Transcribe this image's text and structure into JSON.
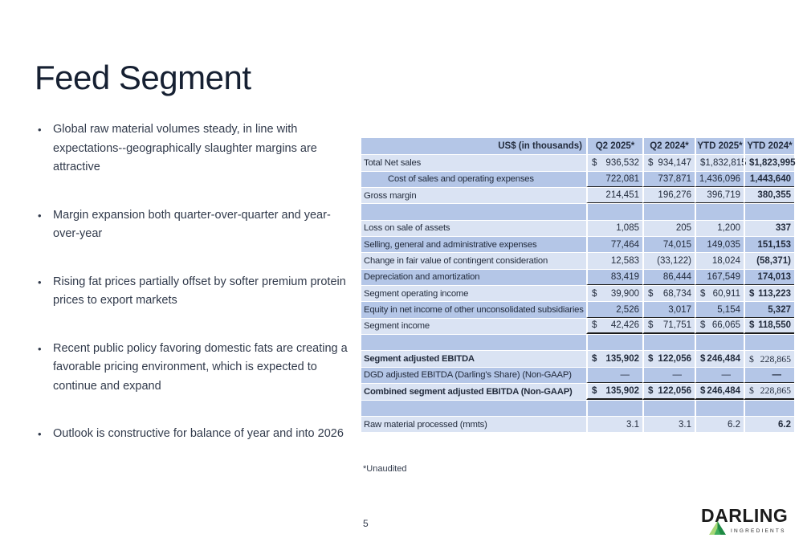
{
  "slide": {
    "title": "Feed Segment",
    "footnote": "*Unaudited",
    "page_number": "5"
  },
  "bullets": [
    "Global raw material volumes steady, in line with expectations--geographically slaughter margins are attractive",
    "Margin expansion both quarter-over-quarter and year-over-year",
    "Rising fat prices partially offset by softer premium protein prices to export markets",
    "Recent public policy favoring domestic fats are creating a favorable pricing environment, which is expected to continue and expand",
    "Outlook is constructive for balance of year and into 2026"
  ],
  "table": {
    "unit_label": "US$ (in thousands)",
    "columns": [
      "Q2 2025*",
      "Q2 2024*",
      "YTD 2025*",
      "YTD 2024*"
    ],
    "colors": {
      "header_bg": "#b4c6e7",
      "band_light": "#dae3f3",
      "band_medium": "#b4c6e7",
      "text": "#232c3d",
      "rule": "#1a1a1a"
    },
    "rows": [
      {
        "label": "Total Net sales",
        "band": "light",
        "dollar": true,
        "values": [
          "936,532",
          "934,147",
          "1,832,815",
          "1,823,995"
        ]
      },
      {
        "label": "Cost of sales and operating expenses",
        "band": "medium",
        "indent": true,
        "underline": "thin",
        "values": [
          "722,081",
          "737,871",
          "1,436,096",
          "1,443,640"
        ]
      },
      {
        "label": "Gross margin",
        "band": "light",
        "underline": "thin",
        "values": [
          "214,451",
          "196,276",
          "396,719",
          "380,355"
        ]
      },
      {
        "label": "",
        "band": "medium",
        "values": [
          "",
          "",
          "",
          ""
        ]
      },
      {
        "label": "Loss on sale of assets",
        "band": "light",
        "values": [
          "1,085",
          "205",
          "1,200",
          "337"
        ]
      },
      {
        "label": "Selling, general and administrative expenses",
        "band": "medium",
        "values": [
          "77,464",
          "74,015",
          "149,035",
          "151,153"
        ]
      },
      {
        "label": "Change in fair value of contingent consideration",
        "band": "light",
        "values": [
          "12,583",
          "(33,122)",
          "18,024",
          "(58,371)"
        ]
      },
      {
        "label": "Depreciation and amortization",
        "band": "medium",
        "underline": "thin",
        "values": [
          "83,419",
          "86,444",
          "167,549",
          "174,013"
        ]
      },
      {
        "label": "Segment operating income",
        "band": "light",
        "dollar": true,
        "values": [
          "39,900",
          "68,734",
          "60,911",
          "113,223"
        ]
      },
      {
        "label": "Equity in net income of other unconsolidated subsidiaries",
        "band": "medium",
        "underline": "thin",
        "values": [
          "2,526",
          "3,017",
          "5,154",
          "5,327"
        ]
      },
      {
        "label": "Segment income",
        "band": "light",
        "dollar": true,
        "underline": "thick",
        "values": [
          "42,426",
          "71,751",
          "66,065",
          "118,550"
        ]
      },
      {
        "label": "",
        "band": "medium",
        "values": [
          "",
          "",
          "",
          ""
        ]
      },
      {
        "label": "Segment adjusted EBITDA",
        "band": "light",
        "bold": true,
        "dollar": true,
        "serif_last": true,
        "values": [
          "135,902",
          "122,056",
          "246,484",
          "228,865"
        ]
      },
      {
        "label": "DGD adjusted EBITDA (Darling's Share) (Non-GAAP)",
        "band": "medium",
        "underline": "thin",
        "values": [
          "—",
          "—",
          "—",
          "—"
        ]
      },
      {
        "label": "Combined segment adjusted EBITDA (Non-GAAP)",
        "band": "light",
        "bold": true,
        "dollar": true,
        "serif_last": true,
        "underline": "thick",
        "values": [
          "135,902",
          "122,056",
          "246,484",
          "228,865"
        ]
      },
      {
        "label": "",
        "band": "medium",
        "values": [
          "",
          "",
          "",
          ""
        ]
      },
      {
        "label": "Raw material processed (mmts)",
        "band": "light",
        "values": [
          "3.1",
          "3.1",
          "6.2",
          "6.2"
        ]
      }
    ]
  },
  "logo": {
    "name": "DARLING",
    "subtitle": "INGREDIENTS",
    "triangle_light": "#a8d878",
    "triangle_dark": "#1e8a44"
  }
}
